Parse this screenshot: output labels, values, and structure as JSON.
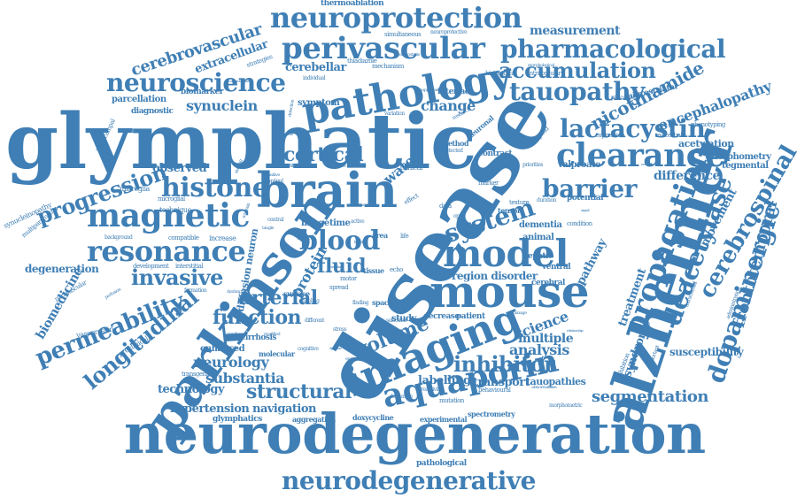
{
  "theme": {
    "word_color": "#3f7fb5",
    "background": "#ffffff"
  },
  "words": [
    {
      "text": "glymphatic",
      "weight": 100
    },
    {
      "text": "neurodegeneration",
      "weight": 92
    },
    {
      "text": "disease",
      "weight": 95
    },
    {
      "text": "alzheimer",
      "weight": 70
    },
    {
      "text": "parkinson",
      "weight": 62
    },
    {
      "text": "mouse",
      "weight": 62
    },
    {
      "text": "brain",
      "weight": 60
    },
    {
      "text": "imaging",
      "weight": 56
    },
    {
      "text": "pathology",
      "weight": 52
    },
    {
      "text": "model",
      "weight": 48
    },
    {
      "text": "neuroprotection",
      "weight": 44
    },
    {
      "text": "perivascular",
      "weight": 44
    },
    {
      "text": "magnetic",
      "weight": 44
    },
    {
      "text": "aquaporin",
      "weight": 42
    },
    {
      "text": "clearance",
      "weight": 40
    },
    {
      "text": "propagation",
      "weight": 40
    },
    {
      "text": "resonance",
      "weight": 38
    },
    {
      "text": "histone",
      "weight": 38
    },
    {
      "text": "neurodegenerative",
      "weight": 36
    },
    {
      "text": "neuroscience",
      "weight": 34
    },
    {
      "text": "pharmacological",
      "weight": 34
    },
    {
      "text": "tauopathy",
      "weight": 34
    },
    {
      "text": "lactacystin",
      "weight": 34
    },
    {
      "text": "barrier",
      "weight": 32
    },
    {
      "text": "blood",
      "weight": 32
    },
    {
      "text": "system",
      "weight": 30
    },
    {
      "text": "deacetylase",
      "weight": 30
    },
    {
      "text": "dopaminergic",
      "weight": 30
    },
    {
      "text": "cerebrospinal",
      "weight": 28
    },
    {
      "text": "permeability",
      "weight": 28
    },
    {
      "text": "longitudinal",
      "weight": 26
    },
    {
      "text": "progression",
      "weight": 26
    },
    {
      "text": "accumulation",
      "weight": 26
    },
    {
      "text": "inhibitor",
      "weight": 26
    },
    {
      "text": "structural",
      "weight": 24
    },
    {
      "text": "volume",
      "weight": 24
    },
    {
      "text": "invasive",
      "weight": 24
    },
    {
      "text": "function",
      "weight": 24
    },
    {
      "text": "nicotinamide",
      "weight": 22
    },
    {
      "text": "fluid",
      "weight": 22
    },
    {
      "text": "cortical",
      "weight": 22
    },
    {
      "text": "segmentation",
      "weight": 20
    },
    {
      "text": "arterial",
      "weight": 22
    },
    {
      "text": "cerebrovascular",
      "weight": 20
    },
    {
      "text": "encephalopathy",
      "weight": 18
    },
    {
      "text": "frontotemporal",
      "weight": 18
    },
    {
      "text": "neurology",
      "weight": 18
    },
    {
      "text": "substantia",
      "weight": 18
    },
    {
      "text": "analysis",
      "weight": 18
    },
    {
      "text": "multiple",
      "weight": 18
    },
    {
      "text": "science",
      "weight": 18
    },
    {
      "text": "difference",
      "weight": 16
    },
    {
      "text": "synuclein",
      "weight": 16
    },
    {
      "text": "change",
      "weight": 16
    },
    {
      "text": "water",
      "weight": 16
    },
    {
      "text": "protein",
      "weight": 16
    },
    {
      "text": "biomedicine",
      "weight": 16
    },
    {
      "text": "hypertension",
      "weight": 14
    },
    {
      "text": "navigation",
      "weight": 14
    },
    {
      "text": "labelling",
      "weight": 14
    },
    {
      "text": "transport",
      "weight": 14
    },
    {
      "text": "movement",
      "weight": 14
    },
    {
      "text": "treatment",
      "weight": 14
    },
    {
      "text": "pathway",
      "weight": 14
    },
    {
      "text": "syndrome",
      "weight": 14
    },
    {
      "text": "extracellular",
      "weight": 14
    },
    {
      "text": "cerebellar",
      "weight": 14
    },
    {
      "text": "measurement",
      "weight": 14
    },
    {
      "text": "region disorder",
      "weight": 12
    },
    {
      "text": "observed",
      "weight": 12
    },
    {
      "text": "degeneration",
      "weight": 12
    },
    {
      "text": "technology",
      "weight": 12
    },
    {
      "text": "tauopathies",
      "weight": 11
    },
    {
      "text": "acetylation",
      "weight": 11
    },
    {
      "text": "morphometry",
      "weight": 10
    },
    {
      "text": "tegmental",
      "weight": 10
    },
    {
      "text": "susceptibility",
      "weight": 12
    },
    {
      "text": "diffusion neuron",
      "weight": 11
    },
    {
      "text": "symptom",
      "weight": 10
    },
    {
      "text": "parcellation",
      "weight": 10
    },
    {
      "text": "biomarker",
      "weight": 9
    },
    {
      "text": "diagnostic",
      "weight": 9
    },
    {
      "text": "nigrostriatal",
      "weight": 9
    },
    {
      "text": "valproate",
      "weight": 10
    },
    {
      "text": "dementia",
      "weight": 10
    },
    {
      "text": "potential",
      "weight": 9
    },
    {
      "text": "animal",
      "weight": 10
    },
    {
      "text": "hepatic",
      "weight": 9
    },
    {
      "text": "ventral",
      "weight": 9
    },
    {
      "text": "cerebral",
      "weight": 9
    },
    {
      "text": "patient",
      "weight": 9
    },
    {
      "text": "study",
      "weight": 10
    },
    {
      "text": "decrease",
      "weight": 9
    },
    {
      "text": "enhanced",
      "weight": 10
    },
    {
      "text": "cirrhosis",
      "weight": 9
    },
    {
      "text": "molecular",
      "weight": 8
    },
    {
      "text": "glymphatics",
      "weight": 9
    },
    {
      "text": "pathological",
      "weight": 9
    },
    {
      "text": "spectrometry",
      "weight": 8
    },
    {
      "text": "experimental",
      "weight": 8
    },
    {
      "text": "doxycycline",
      "weight": 8
    },
    {
      "text": "aggregation",
      "weight": 8
    },
    {
      "text": "thermoablation",
      "weight": 9
    },
    {
      "text": "simultaneous",
      "weight": 7
    },
    {
      "text": "neuroprotective",
      "weight": 6
    },
    {
      "text": "strategies",
      "weight": 7
    },
    {
      "text": "thiadiazole",
      "weight": 7
    },
    {
      "text": "mechanism",
      "weight": 7
    },
    {
      "text": "histological",
      "weight": 7
    },
    {
      "text": "intracellular",
      "weight": 7
    },
    {
      "text": "piracetam",
      "weight": 6
    },
    {
      "text": "phenotyping",
      "weight": 7
    },
    {
      "text": "exacerbate",
      "weight": 7
    },
    {
      "text": "expression",
      "weight": 7
    },
    {
      "text": "hippocampal",
      "weight": 7
    },
    {
      "text": "synucleinopathy",
      "weight": 8
    },
    {
      "text": "multiparametric",
      "weight": 7
    },
    {
      "text": "microglia",
      "weight": 8
    },
    {
      "text": "microglial",
      "weight": 7
    },
    {
      "text": "compatible",
      "weight": 7
    },
    {
      "text": "increase",
      "weight": 8
    },
    {
      "text": "background",
      "weight": 6
    },
    {
      "text": "development",
      "weight": 7
    },
    {
      "text": "interstitial",
      "weight": 7
    },
    {
      "text": "formation",
      "weight": 6
    },
    {
      "text": "paravascular",
      "weight": 7
    },
    {
      "text": "vasopressin",
      "weight": 8
    },
    {
      "text": "preclinical",
      "weight": 8
    },
    {
      "text": "transgenic",
      "weight": 7
    },
    {
      "text": "assessment",
      "weight": 7
    },
    {
      "text": "technique",
      "weight": 8
    },
    {
      "text": "image",
      "weight": 10
    },
    {
      "text": "time",
      "weight": 10
    },
    {
      "text": "tissue",
      "weight": 8
    },
    {
      "text": "space",
      "weight": 8
    },
    {
      "text": "surface",
      "weight": 8
    },
    {
      "text": "motor",
      "weight": 7
    },
    {
      "text": "spread",
      "weight": 7
    },
    {
      "text": "method",
      "weight": 8
    },
    {
      "text": "neuronal",
      "weight": 8
    },
    {
      "text": "interface",
      "weight": 9
    },
    {
      "text": "contrast",
      "weight": 9
    },
    {
      "text": "texture",
      "weight": 7
    },
    {
      "text": "tensor",
      "weight": 8
    },
    {
      "text": "marker",
      "weight": 7
    },
    {
      "text": "clinical",
      "weight": 8
    },
    {
      "text": "mutation",
      "weight": 7
    },
    {
      "text": "behavioural",
      "weight": 7
    },
    {
      "text": "reactivity",
      "weight": 6
    },
    {
      "text": "control",
      "weight": 7
    },
    {
      "text": "based",
      "weight": 7
    },
    {
      "text": "active",
      "weight": 6
    },
    {
      "text": "area",
      "weight": 8
    },
    {
      "text": "priorities",
      "weight": 6
    },
    {
      "text": "condition",
      "weight": 7
    },
    {
      "text": "inhibition",
      "weight": 7
    },
    {
      "text": "important",
      "weight": 6
    },
    {
      "text": "administration",
      "weight": 6
    },
    {
      "text": "intracranial",
      "weight": 6
    },
    {
      "text": "echo",
      "weight": 7
    },
    {
      "text": "life",
      "weight": 7
    },
    {
      "text": "detected",
      "weight": 6
    },
    {
      "text": "research",
      "weight": 6
    },
    {
      "text": "amyloid",
      "weight": 7
    },
    {
      "text": "duration",
      "weight": 6
    },
    {
      "text": "data",
      "weight": 7
    },
    {
      "text": "optic",
      "weight": 6
    },
    {
      "text": "effect",
      "weight": 7
    },
    {
      "text": "individual",
      "weight": 6
    },
    {
      "text": "variation",
      "weight": 6
    },
    {
      "text": "selection",
      "weight": 6
    },
    {
      "text": "finding",
      "weight": 6
    },
    {
      "text": "labeling",
      "weight": 6
    },
    {
      "text": "cognitive",
      "weight": 6
    },
    {
      "text": "dopamine",
      "weight": 6
    },
    {
      "text": "different",
      "weight": 6
    },
    {
      "text": "stress",
      "weight": 6
    },
    {
      "text": "central",
      "weight": 6
    },
    {
      "text": "homeostasis",
      "weight": 5
    },
    {
      "text": "morphological",
      "weight": 5
    },
    {
      "text": "suppression",
      "weight": 5
    },
    {
      "text": "detection",
      "weight": 5
    },
    {
      "text": "tangle",
      "weight": 5
    },
    {
      "text": "drainage",
      "weight": 5
    },
    {
      "text": "abnormalities",
      "weight": 5
    },
    {
      "text": "morphometric",
      "weight": 6
    },
    {
      "text": "staining",
      "weight": 5
    },
    {
      "text": "measure",
      "weight": 5
    },
    {
      "text": "sclerosis",
      "weight": 5
    },
    {
      "text": "significant",
      "weight": 5
    },
    {
      "text": "modified",
      "weight": 5
    },
    {
      "text": "dysfunction",
      "weight": 5
    },
    {
      "text": "perfusion",
      "weight": 5
    },
    {
      "text": "exchange",
      "weight": 5
    },
    {
      "text": "sensitive",
      "weight": 5
    },
    {
      "text": "reduced",
      "weight": 5
    },
    {
      "text": "level",
      "weight": 5
    },
    {
      "text": "comprehensive",
      "weight": 4
    },
    {
      "text": "cisterna",
      "weight": 4
    },
    {
      "text": "dynamic",
      "weight": 4
    },
    {
      "text": "relationship",
      "weight": 4
    },
    {
      "text": "network",
      "weight": 4
    },
    {
      "text": "signal",
      "weight": 4
    },
    {
      "text": "vascular",
      "weight": 4
    }
  ]
}
